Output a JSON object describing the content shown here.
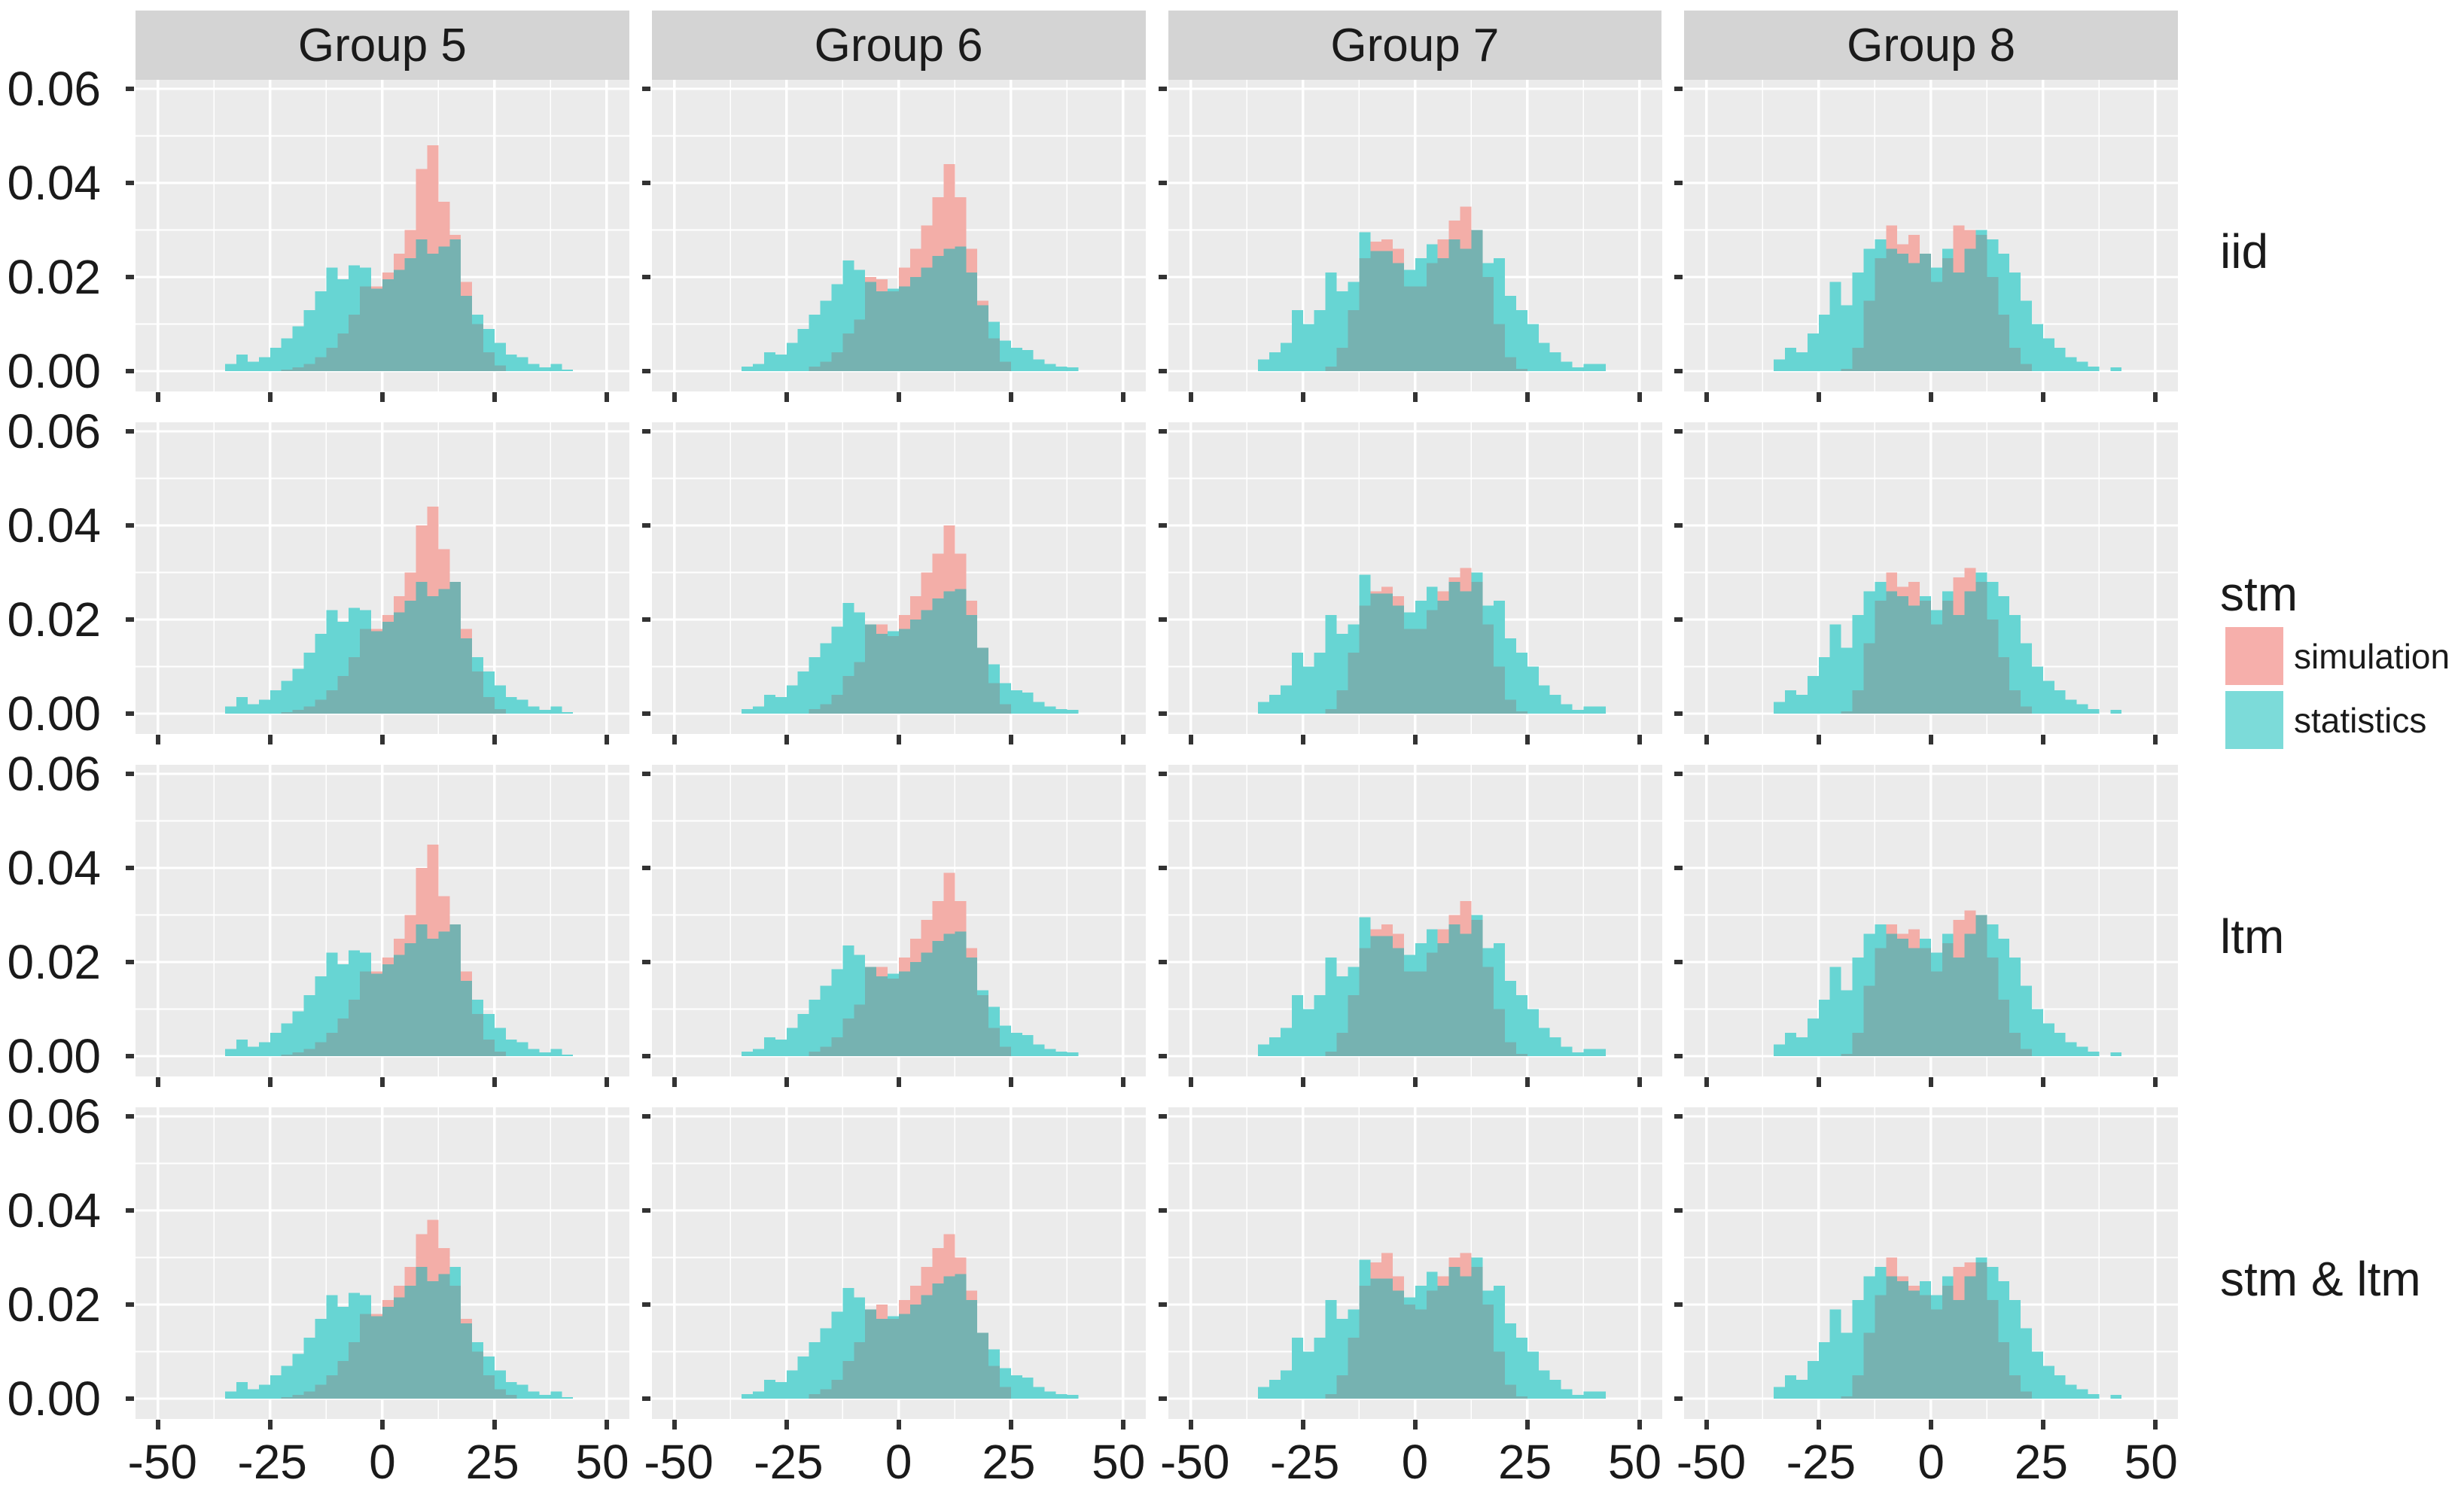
{
  "figure_title": "",
  "facets": {
    "columns": [
      "Group 5",
      "Group 6",
      "Group 7",
      "Group 8"
    ],
    "rows": [
      "iid",
      "stm",
      "ltm",
      "stm & ltm"
    ]
  },
  "axes": {
    "y_tick_labels": [
      "0.06",
      "0.04",
      "0.02",
      "0.00"
    ],
    "y_tick_values": [
      0.06,
      0.04,
      0.02,
      0.0
    ],
    "x_tick_labels": [
      "-50",
      "-25",
      "0",
      "25",
      "50"
    ],
    "x_tick_values": [
      -50,
      -25,
      0,
      25,
      50
    ]
  },
  "legend": {
    "items": [
      {
        "label": "simulation",
        "color": "#F6AFAB",
        "icon": "swatch-square"
      },
      {
        "label": "statistics",
        "color": "#7CDBD9",
        "icon": "swatch-square"
      }
    ]
  },
  "colors": {
    "panel_bg": "#EBEBEB",
    "grid_major": "#FFFFFF",
    "grid_minor": "#F8F8F8",
    "strip_bg": "#D4D4D4",
    "sim_fill": "#F3AEA8",
    "stat_fill": "#67D5D3",
    "overlap_fill": "#76B2B1",
    "tick": "#333333",
    "text": "#1A1A1A"
  },
  "chart_data": {
    "type": "bar",
    "subtype": "overlaid-histograms",
    "value_unit": 0.001,
    "bin_start": -35,
    "bin_width": 2.5,
    "n_bins": 31,
    "x_range": [
      -55,
      55
    ],
    "y_range": [
      -0.0043,
      0.0619
    ],
    "x_major_gridlines": [
      -50,
      -25,
      0,
      25,
      50
    ],
    "x_minor_gridlines": [
      -37.5,
      -12.5,
      12.5,
      37.5
    ],
    "y_major_gridlines": [
      0,
      0.02,
      0.04,
      0.06
    ],
    "y_minor_gridlines": [
      0.01,
      0.03,
      0.05
    ],
    "grid": true,
    "legend_position": "right",
    "series_names": [
      "simulation",
      "statistics"
    ],
    "panels": [
      {
        "row": "iid",
        "col": "Group 5",
        "statistics": [
          1.5,
          3.5,
          2,
          3,
          5,
          7,
          9.5,
          13,
          17,
          22,
          19.5,
          22.5,
          22,
          17.5,
          19.5,
          21.5,
          24,
          28,
          25,
          26.5,
          28,
          16,
          12,
          9,
          6,
          3.5,
          3,
          1.5,
          0.8,
          1.5,
          0.3
        ],
        "simulation": [
          0,
          0,
          0,
          0,
          0,
          0.3,
          0.8,
          1.5,
          3,
          5,
          8,
          12,
          18,
          18,
          21,
          25,
          30,
          43,
          48,
          36,
          29,
          19,
          10,
          4,
          1.2,
          0,
          0,
          0,
          0,
          0,
          0
        ]
      },
      {
        "row": "iid",
        "col": "Group 6",
        "statistics": [
          1,
          1.5,
          4,
          3.5,
          6,
          9,
          12,
          15,
          18.5,
          23.5,
          21.5,
          19,
          17,
          17.5,
          18,
          20,
          22,
          24.5,
          26,
          26.5,
          21,
          14,
          10.5,
          6.5,
          5,
          4.5,
          2.5,
          1.5,
          1,
          0.8,
          0
        ],
        "simulation": [
          0,
          0,
          0,
          0,
          0,
          0,
          1,
          2,
          4,
          8,
          11,
          20,
          19.5,
          17,
          22,
          26,
          31,
          37,
          44,
          37,
          26,
          15,
          7,
          2,
          0,
          0,
          0,
          0,
          0,
          0,
          0
        ]
      },
      {
        "row": "iid",
        "col": "Group 7",
        "statistics": [
          2.5,
          4,
          6,
          13,
          10,
          13,
          21,
          17,
          19,
          29.5,
          25.5,
          25.5,
          23,
          21.5,
          24,
          27,
          24,
          28,
          26,
          30,
          23,
          24,
          16,
          13,
          10,
          6,
          4,
          2,
          0.8,
          1.5,
          1.5
        ],
        "simulation": [
          0,
          0,
          0,
          0,
          0,
          0,
          1,
          5,
          13,
          24,
          27.5,
          28,
          26,
          18,
          18,
          23,
          28,
          32,
          35,
          30,
          20,
          10,
          3,
          0.5,
          0,
          0,
          0,
          0,
          0,
          0,
          0
        ]
      },
      {
        "row": "iid",
        "col": "Group 8",
        "statistics": [
          2.5,
          5,
          4,
          8,
          12,
          19,
          14,
          21,
          26,
          28,
          26,
          25,
          23,
          25,
          22,
          26,
          21,
          26,
          30,
          28,
          25,
          21,
          15,
          10,
          7,
          5,
          3,
          2,
          1,
          0,
          0.8
        ],
        "simulation": [
          0,
          0,
          0,
          0,
          0,
          0,
          0.5,
          5,
          15,
          24,
          31,
          27,
          29,
          25,
          19,
          24,
          31,
          30,
          29,
          20,
          12,
          5,
          1.5,
          0,
          0,
          0,
          0,
          0,
          0,
          0,
          0
        ]
      },
      {
        "row": "stm",
        "col": "Group 5",
        "statistics": [
          1.5,
          3.5,
          2,
          3,
          5,
          7,
          9.5,
          13,
          17,
          22,
          19.5,
          22.5,
          22,
          17.5,
          19.5,
          21.5,
          24,
          28,
          25,
          26.5,
          28,
          16,
          12,
          9,
          6,
          3.5,
          3,
          1.5,
          0.8,
          1.5,
          0.3
        ],
        "simulation": [
          0,
          0,
          0,
          0,
          0,
          0.3,
          0.8,
          1.5,
          3,
          5,
          8,
          12,
          18,
          18,
          21,
          25,
          30,
          40,
          44,
          35,
          28,
          18,
          9,
          3.5,
          1,
          0,
          0,
          0,
          0,
          0,
          0
        ]
      },
      {
        "row": "stm",
        "col": "Group 6",
        "statistics": [
          1,
          1.5,
          4,
          3.5,
          6,
          9,
          12,
          15,
          18.5,
          23.5,
          21.5,
          19,
          17,
          17.5,
          18,
          20,
          22,
          24.5,
          26,
          26.5,
          21,
          14,
          10.5,
          6.5,
          5,
          4.5,
          2.5,
          1.5,
          1,
          0.8,
          0
        ],
        "simulation": [
          0,
          0,
          0,
          0,
          0,
          0,
          1,
          2,
          4,
          8,
          11,
          19,
          19,
          16.5,
          21,
          25,
          30,
          34,
          40,
          34,
          24,
          14,
          6.5,
          2,
          0,
          0,
          0,
          0,
          0,
          0,
          0
        ]
      },
      {
        "row": "stm",
        "col": "Group 7",
        "statistics": [
          2.5,
          4,
          6,
          13,
          10,
          13,
          21,
          17,
          19,
          29.5,
          25.5,
          25.5,
          23,
          21.5,
          24,
          27,
          24,
          28,
          26,
          30,
          23,
          24,
          16,
          13,
          10,
          6,
          4,
          2,
          0.8,
          1.5,
          1.5
        ],
        "simulation": [
          0,
          0,
          0,
          0,
          0,
          0,
          1,
          5,
          13,
          23,
          26,
          27,
          25,
          18,
          18,
          22,
          26,
          29,
          31,
          28,
          19,
          10,
          3,
          0.5,
          0,
          0,
          0,
          0,
          0,
          0,
          0
        ]
      },
      {
        "row": "stm",
        "col": "Group 8",
        "statistics": [
          2.5,
          5,
          4,
          8,
          12,
          19,
          14,
          21,
          26,
          28,
          26,
          25,
          23,
          25,
          22,
          26,
          21,
          26,
          30,
          28,
          25,
          21,
          15,
          10,
          7,
          5,
          3,
          2,
          1,
          0,
          0.8
        ],
        "simulation": [
          0,
          0,
          0,
          0,
          0,
          0,
          0.5,
          5,
          15,
          24,
          30,
          27,
          28,
          24,
          19,
          24,
          29,
          31,
          28,
          20,
          12,
          5,
          1.5,
          0,
          0,
          0,
          0,
          0,
          0,
          0,
          0
        ]
      },
      {
        "row": "ltm",
        "col": "Group 5",
        "statistics": [
          1.5,
          3.5,
          2,
          3,
          5,
          7,
          9.5,
          13,
          17,
          22,
          19.5,
          22.5,
          22,
          17.5,
          19.5,
          21.5,
          24,
          28,
          25,
          26.5,
          28,
          16,
          12,
          9,
          6,
          3.5,
          3,
          1.5,
          0.8,
          1.5,
          0.3
        ],
        "simulation": [
          0,
          0,
          0,
          0,
          0,
          0.3,
          0.8,
          1.5,
          3,
          5,
          8,
          12,
          18,
          18,
          21,
          25,
          30,
          40,
          45,
          34,
          28,
          18,
          9,
          3.5,
          1,
          0,
          0,
          0,
          0,
          0,
          0
        ]
      },
      {
        "row": "ltm",
        "col": "Group 6",
        "statistics": [
          1,
          1.5,
          4,
          3.5,
          6,
          9,
          12,
          15,
          18.5,
          23.5,
          21.5,
          19,
          17,
          17.5,
          18,
          20,
          22,
          24.5,
          26,
          26.5,
          21,
          14,
          10.5,
          6.5,
          5,
          4.5,
          2.5,
          1.5,
          1,
          0.8,
          0
        ],
        "simulation": [
          0,
          0,
          0,
          0,
          0,
          0,
          1,
          2,
          4,
          8,
          11,
          19,
          19,
          16.5,
          21,
          25,
          29,
          33,
          39,
          33,
          23,
          13,
          6,
          2,
          0,
          0,
          0,
          0,
          0,
          0,
          0
        ]
      },
      {
        "row": "ltm",
        "col": "Group 7",
        "statistics": [
          2.5,
          4,
          6,
          13,
          10,
          13,
          21,
          17,
          19,
          29.5,
          25.5,
          25.5,
          23,
          21.5,
          24,
          27,
          24,
          28,
          26,
          30,
          23,
          24,
          16,
          13,
          10,
          6,
          4,
          2,
          0.8,
          1.5,
          1.5
        ],
        "simulation": [
          0,
          0,
          0,
          0,
          0,
          0,
          1,
          5,
          13,
          23,
          27,
          28,
          26,
          18,
          18,
          22,
          27,
          30,
          33,
          29,
          19,
          10,
          3,
          0.5,
          0,
          0,
          0,
          0,
          0,
          0,
          0
        ]
      },
      {
        "row": "ltm",
        "col": "Group 8",
        "statistics": [
          2.5,
          5,
          4,
          8,
          12,
          19,
          14,
          21,
          26,
          28,
          26,
          25,
          23,
          25,
          22,
          26,
          21,
          26,
          30,
          28,
          25,
          21,
          15,
          10,
          7,
          5,
          3,
          2,
          1,
          0,
          0.8
        ],
        "simulation": [
          0,
          0,
          0,
          0,
          0,
          0,
          0.5,
          5,
          15,
          23,
          28,
          26,
          27,
          23,
          18,
          24,
          29,
          31,
          30,
          21,
          12,
          5,
          1.5,
          0,
          0,
          0,
          0,
          0,
          0,
          0,
          0
        ]
      },
      {
        "row": "stm & ltm",
        "col": "Group 5",
        "statistics": [
          1.5,
          3.5,
          2,
          3,
          5,
          7,
          9.5,
          13,
          17,
          22,
          19.5,
          22.5,
          22,
          17.5,
          19.5,
          21.5,
          24,
          28,
          25,
          26.5,
          28,
          16,
          12,
          9,
          6,
          3.5,
          3,
          1.5,
          0.8,
          1.5,
          0.3
        ],
        "simulation": [
          0,
          0,
          0,
          0,
          0,
          0.3,
          0.8,
          1.5,
          3,
          5,
          8,
          12,
          18,
          18,
          21,
          24,
          28,
          35,
          38,
          32,
          24,
          17,
          10,
          5,
          2,
          0.8,
          0,
          0,
          0,
          0,
          0
        ]
      },
      {
        "row": "stm & ltm",
        "col": "Group 6",
        "statistics": [
          1,
          1.5,
          4,
          3.5,
          6,
          9,
          12,
          15,
          18.5,
          23.5,
          21.5,
          19,
          17,
          17.5,
          18,
          20,
          22,
          24.5,
          26,
          26.5,
          21,
          14,
          10.5,
          6.5,
          5,
          4.5,
          2.5,
          1.5,
          1,
          0.8,
          0
        ],
        "simulation": [
          0,
          0,
          0,
          0,
          0,
          0,
          1,
          2,
          4,
          8,
          12,
          19,
          20,
          17,
          21,
          24,
          28,
          32,
          35,
          30,
          23,
          14,
          7,
          2.5,
          0,
          0,
          0,
          0,
          0,
          0,
          0
        ]
      },
      {
        "row": "stm & ltm",
        "col": "Group 7",
        "statistics": [
          2.5,
          4,
          6,
          13,
          10,
          13,
          21,
          17,
          19,
          29.5,
          25.5,
          25.5,
          23,
          21.5,
          24,
          27,
          24,
          28,
          26,
          30,
          23,
          24,
          16,
          13,
          10,
          6,
          4,
          2,
          0.8,
          1.5,
          1.5
        ],
        "simulation": [
          0,
          0,
          0,
          0,
          0,
          0,
          1,
          5,
          13,
          24,
          29,
          31,
          26,
          20,
          19,
          23,
          26,
          30,
          31,
          28,
          20,
          10,
          3,
          0.5,
          0,
          0,
          0,
          0,
          0,
          0,
          0
        ]
      },
      {
        "row": "stm & ltm",
        "col": "Group 8",
        "statistics": [
          2.5,
          5,
          4,
          8,
          12,
          19,
          14,
          21,
          26,
          28,
          26,
          25,
          23,
          25,
          22,
          26,
          21,
          26,
          30,
          28,
          25,
          21,
          15,
          10,
          7,
          5,
          3,
          2,
          1,
          0,
          0.8
        ],
        "simulation": [
          0,
          0,
          0,
          0,
          0,
          0,
          0.5,
          5,
          14,
          22,
          30,
          26,
          24,
          22,
          19,
          24,
          28,
          29,
          29,
          21,
          12,
          5,
          1.5,
          0,
          0,
          0,
          0,
          0,
          0,
          0,
          0
        ]
      }
    ]
  }
}
